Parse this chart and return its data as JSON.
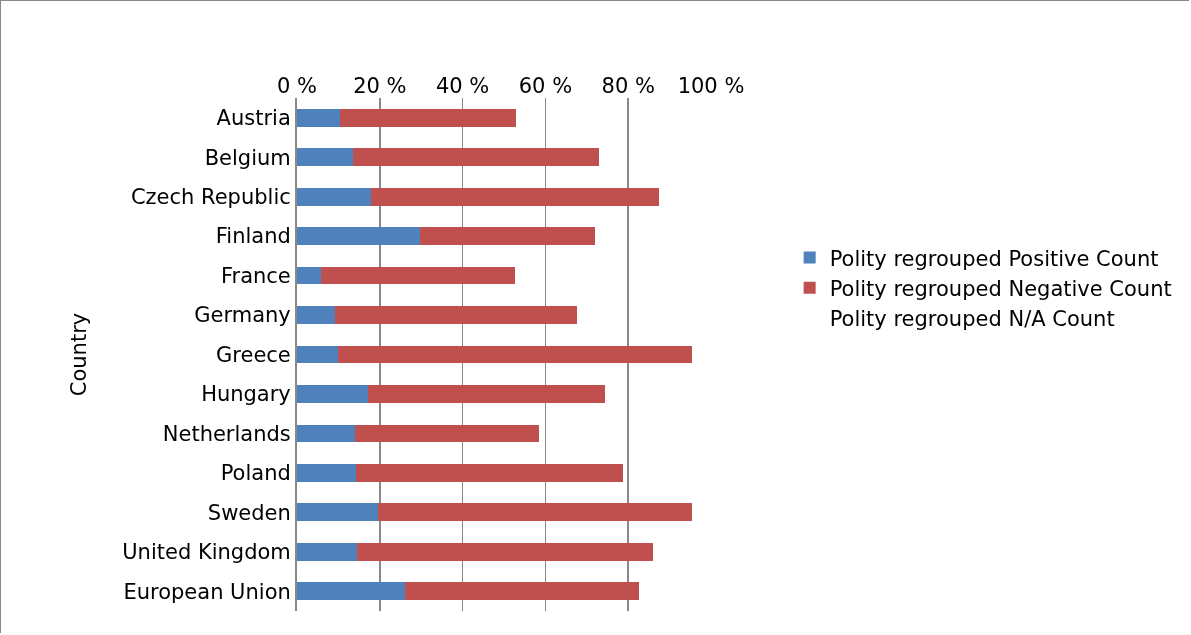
{
  "chart_data": {
    "type": "bar",
    "orientation": "horizontal",
    "stacked": true,
    "ylabel": "Country",
    "categories": [
      "Austria",
      "Belgium",
      "Czech Republic",
      "Finland",
      "France",
      "Germany",
      "Greece",
      "Hungary",
      "Netherlands",
      "Poland",
      "Sweden",
      "United Kingdom",
      "European Union"
    ],
    "series": [
      {
        "name": "Polity regrouped Positive Count",
        "color": "#4f81bd",
        "values": [
          10.4,
          13.5,
          17.8,
          29.7,
          5.8,
          9.2,
          9.9,
          17.1,
          14.1,
          14.2,
          19.5,
          14.6,
          26.2
        ]
      },
      {
        "name": "Polity regrouped Negative Count",
        "color": "#c0504d",
        "values": [
          42.4,
          59.4,
          69.6,
          42.4,
          46.8,
          58.5,
          85.4,
          57.4,
          44.3,
          64.6,
          75.9,
          71.4,
          56.5
        ]
      },
      {
        "name": "Polity regrouped N/A Count",
        "values": [
          null,
          null,
          null,
          null,
          null,
          null,
          null,
          null,
          null,
          null,
          null,
          null,
          null
        ]
      }
    ],
    "xlim": [
      0,
      100
    ],
    "xticks": [
      {
        "value": 0,
        "label": "0 %"
      },
      {
        "value": 20,
        "label": "20 %"
      },
      {
        "value": 40,
        "label": "40 %"
      },
      {
        "value": 60,
        "label": "60 %"
      },
      {
        "value": 80,
        "label": "80 %"
      },
      {
        "value": 100,
        "label": "100 %"
      }
    ],
    "grid": "x",
    "legend": "right"
  }
}
